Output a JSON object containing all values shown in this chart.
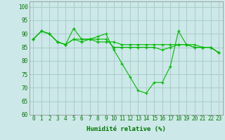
{
  "title": "",
  "xlabel": "Humidité relative (%)",
  "ylabel": "",
  "background_color": "#cce8e8",
  "grid_color": "#aacccc",
  "line_color": "#00bb00",
  "marker_color": "#00bb00",
  "xlim": [
    -0.5,
    23.5
  ],
  "ylim": [
    60,
    102
  ],
  "yticks": [
    60,
    65,
    70,
    75,
    80,
    85,
    90,
    95,
    100
  ],
  "xticks": [
    0,
    1,
    2,
    3,
    4,
    5,
    6,
    7,
    8,
    9,
    10,
    11,
    12,
    13,
    14,
    15,
    16,
    17,
    18,
    19,
    20,
    21,
    22,
    23
  ],
  "series": [
    [
      88,
      91,
      90,
      87,
      86,
      92,
      88,
      88,
      89,
      90,
      84,
      79,
      74,
      69,
      68,
      72,
      72,
      78,
      91,
      86,
      86,
      85,
      85,
      83
    ],
    [
      88,
      91,
      90,
      87,
      86,
      88,
      87,
      88,
      88,
      88,
      85,
      85,
      85,
      85,
      85,
      85,
      84,
      85,
      86,
      86,
      85,
      85,
      85,
      83
    ],
    [
      88,
      91,
      90,
      87,
      86,
      88,
      88,
      88,
      87,
      87,
      87,
      86,
      86,
      86,
      86,
      86,
      86,
      86,
      86,
      86,
      85,
      85,
      85,
      83
    ]
  ],
  "tick_fontsize": 5.5,
  "xlabel_fontsize": 6.5
}
